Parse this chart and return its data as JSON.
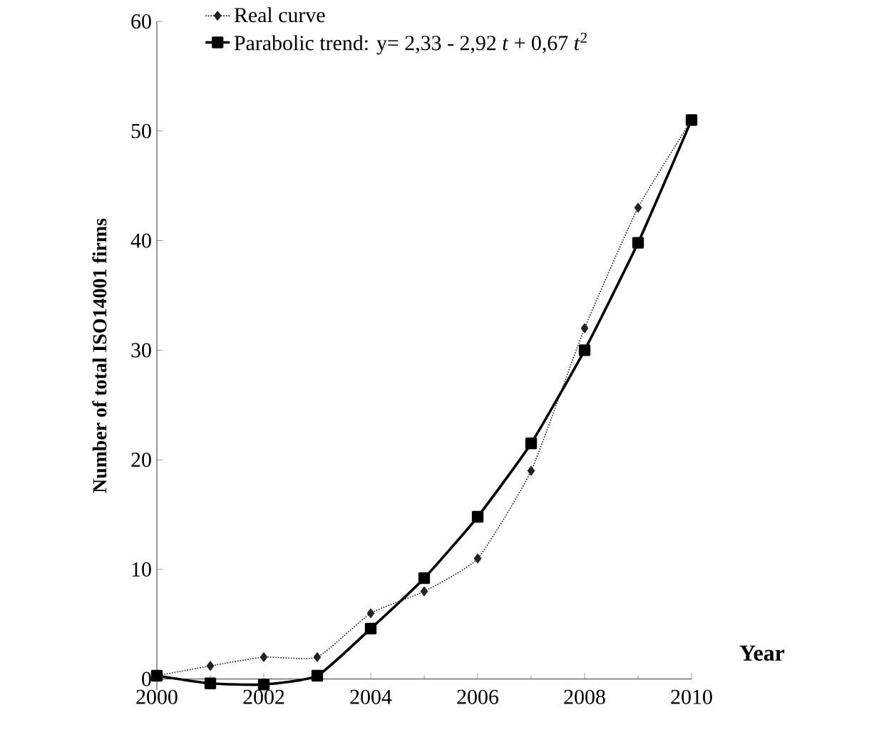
{
  "chart_data": {
    "type": "line",
    "xlabel": "Year",
    "ylabel": "Number of total ISO14001 firms",
    "x": [
      2000,
      2001,
      2002,
      2003,
      2004,
      2005,
      2006,
      2007,
      2008,
      2009,
      2010
    ],
    "series": [
      {
        "name": "Real curve",
        "color": "#222222",
        "marker": "diamond",
        "line_style": "dotted",
        "values": [
          0.3,
          1.2,
          2,
          2,
          6,
          8,
          11,
          19,
          32,
          43,
          51
        ]
      },
      {
        "name": "Parabolic trend:  y= 2,33 - 2,92 *t* + 0,67 *t*$^{2}$",
        "color": "#000000",
        "marker": "square",
        "line_style": "solid",
        "values": [
          0.3,
          -0.4,
          -0.5,
          0.3,
          4.6,
          9.2,
          14.8,
          21.5,
          30,
          39.8,
          51
        ]
      }
    ],
    "xlim": [
      2000,
      2010
    ],
    "ylim": [
      -1,
      60
    ],
    "xticks": [
      2000,
      2002,
      2004,
      2006,
      2008,
      2010
    ],
    "yticks": [
      0,
      10,
      20,
      30,
      40,
      50,
      60
    ],
    "grid": false,
    "legend": "top left"
  }
}
